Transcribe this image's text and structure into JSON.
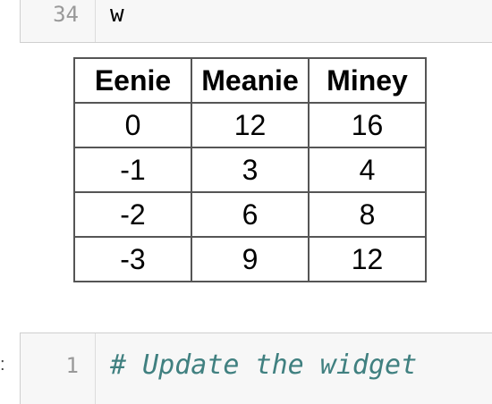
{
  "top_cell": {
    "line_number": "34",
    "code": "w"
  },
  "output_table": {
    "headers": [
      "Eenie",
      "Meanie",
      "Miney"
    ],
    "rows": [
      [
        "0",
        "12",
        "16"
      ],
      [
        "-1",
        "3",
        "4"
      ],
      [
        "-2",
        "6",
        "8"
      ],
      [
        "-3",
        "9",
        "12"
      ]
    ]
  },
  "bottom_cell": {
    "line_number": "1",
    "code": "# Update the widget"
  }
}
